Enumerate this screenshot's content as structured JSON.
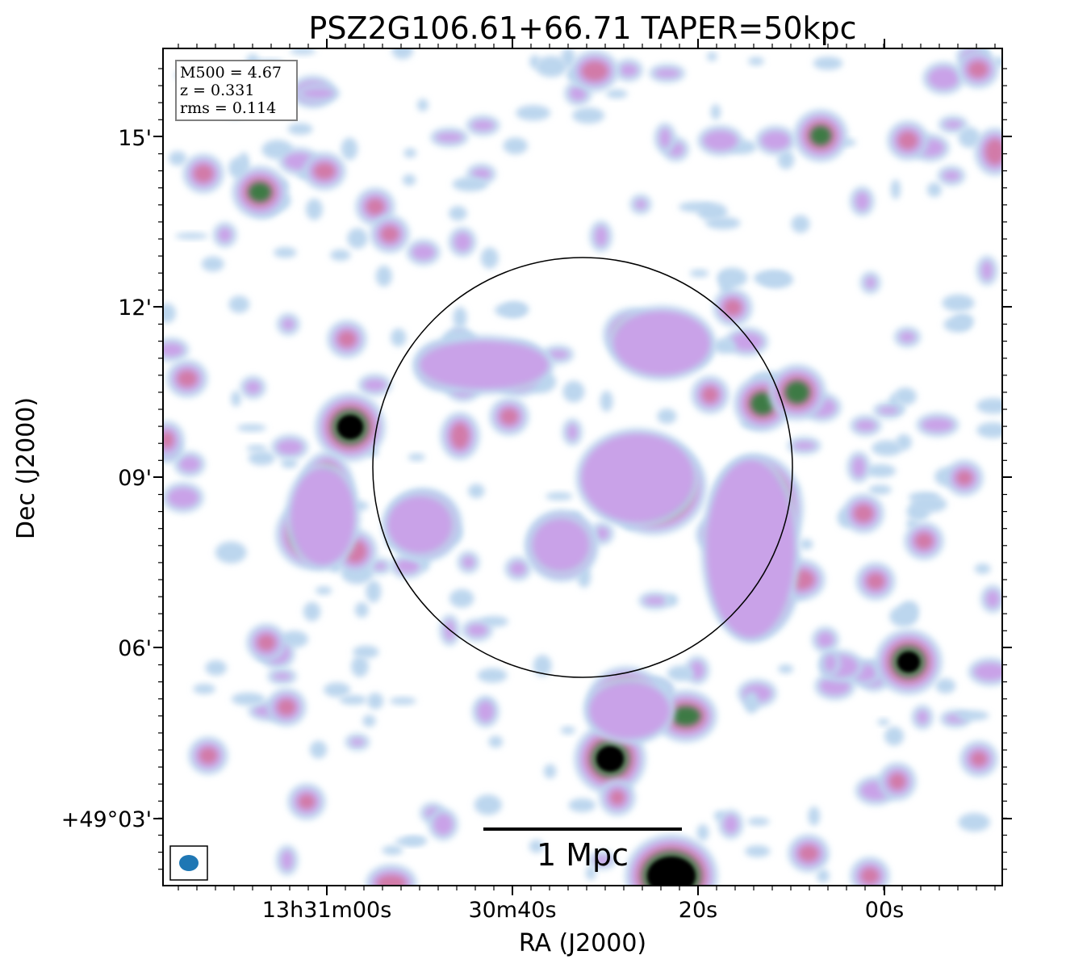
{
  "title": "PSZ2G106.61+66.71 TAPER=50kpc",
  "info_box": {
    "lines": [
      "M500 = 4.67",
      "z = 0.331",
      "rms = 0.114"
    ]
  },
  "scale_bar": {
    "label": "1 Mpc"
  },
  "colors": {
    "faint": "#bcd6ee",
    "low": "#c9a2e8",
    "mid": "#d27aa8",
    "high": "#3e7a44",
    "peak": "#000000",
    "beam": "#1f77b4"
  },
  "chart_data": {
    "type": "heatmap",
    "title": "PSZ2G106.61+66.71 TAPER=50kpc",
    "xlabel": "RA (J2000)",
    "ylabel": "Dec (J2000)",
    "x_ticks": [
      "13h31m00s",
      "30m40s",
      "20s",
      "00s"
    ],
    "y_ticks": [
      "+49°03'",
      "06'",
      "09'",
      "12'",
      "15'"
    ],
    "colormap": "cubehelix (reversed)",
    "annotations": {
      "circle": "cluster aperture centred on cluster",
      "beam": "restoring beam ellipse (bottom-left)"
    }
  }
}
